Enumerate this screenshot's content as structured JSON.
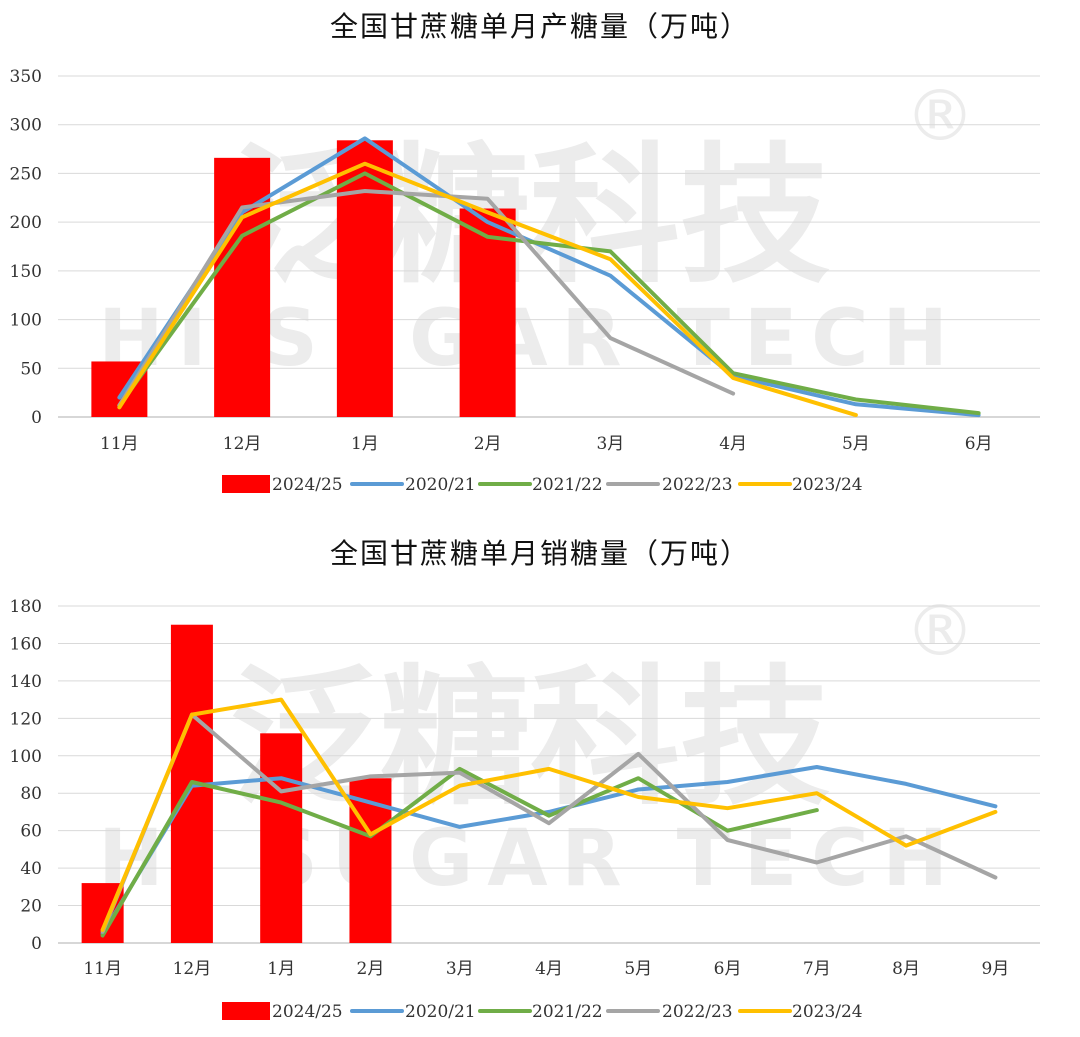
{
  "watermark": {
    "cn": "泛糖科技",
    "en": "HI SUGAR TECH",
    "mark": "®"
  },
  "colors": {
    "2024/25": "#ff0000",
    "2020/21": "#5b9bd5",
    "2021/22": "#70ad47",
    "2022/23": "#a5a5a5",
    "2023/24": "#ffc000"
  },
  "chart_data": [
    {
      "type": "bar",
      "title": "全国甘蔗糖单月产糖量（万吨）",
      "categories": [
        "11月",
        "12月",
        "1月",
        "2月",
        "3月",
        "4月",
        "5月",
        "6月"
      ],
      "ylim": [
        0,
        350
      ],
      "yticks": [
        0,
        50,
        100,
        150,
        200,
        250,
        300,
        350
      ],
      "grid": true,
      "legend_position": "bottom",
      "bar_series": {
        "name": "2024/25",
        "values": [
          57,
          266,
          284,
          214,
          null,
          null,
          null,
          null
        ]
      },
      "line_series": [
        {
          "name": "2020/21",
          "values": [
            20,
            210,
            286,
            200,
            145,
            42,
            13,
            2
          ]
        },
        {
          "name": "2021/22",
          "values": [
            12,
            186,
            250,
            185,
            170,
            45,
            18,
            4
          ]
        },
        {
          "name": "2022/23",
          "values": [
            12,
            215,
            232,
            224,
            81,
            24,
            null,
            null
          ]
        },
        {
          "name": "2023/24",
          "values": [
            10,
            205,
            260,
            210,
            162,
            40,
            2,
            null
          ]
        }
      ]
    },
    {
      "type": "bar",
      "title": "全国甘蔗糖单月销糖量（万吨）",
      "categories": [
        "11月",
        "12月",
        "1月",
        "2月",
        "3月",
        "4月",
        "5月",
        "6月",
        "7月",
        "8月",
        "9月"
      ],
      "ylim": [
        0,
        180
      ],
      "yticks": [
        0,
        20,
        40,
        60,
        80,
        100,
        120,
        140,
        160,
        180
      ],
      "grid": true,
      "legend_position": "bottom",
      "bar_series": {
        "name": "2024/25",
        "values": [
          32,
          170,
          112,
          88,
          null,
          null,
          null,
          null,
          null,
          null,
          null
        ]
      },
      "line_series": [
        {
          "name": "2020/21",
          "values": [
            5,
            84,
            88,
            75,
            62,
            70,
            82,
            86,
            94,
            85,
            73
          ]
        },
        {
          "name": "2021/22",
          "values": [
            4,
            86,
            75,
            57,
            93,
            68,
            88,
            60,
            71,
            null,
            null
          ]
        },
        {
          "name": "2022/23",
          "values": [
            6,
            122,
            81,
            89,
            91,
            64,
            101,
            55,
            43,
            57,
            35
          ]
        },
        {
          "name": "2023/24",
          "values": [
            7,
            122,
            130,
            58,
            84,
            93,
            78,
            72,
            80,
            52,
            70
          ]
        }
      ]
    }
  ]
}
